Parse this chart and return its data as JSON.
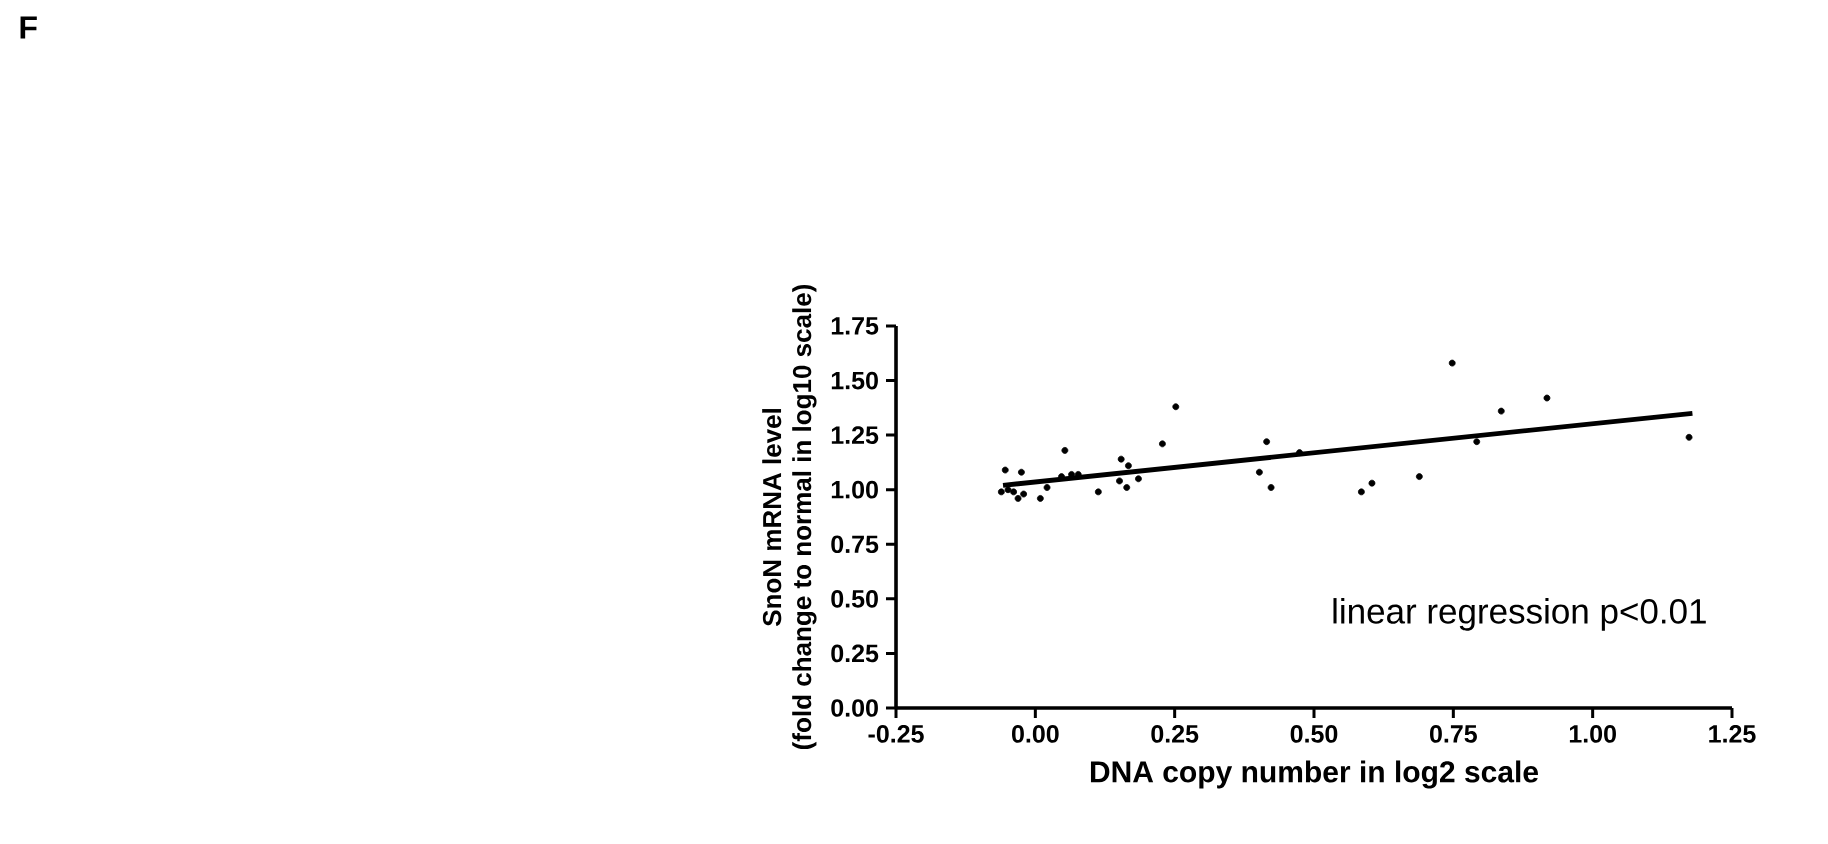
{
  "chart_data": {
    "type": "scatter",
    "xlabel": "DNA copy number in log2 scale",
    "ylabel": "SnoN mRNA level (fold change to normal in log10 scale)",
    "annotations": [
      "F",
      "linear regression p<0.01"
    ],
    "xlim": [
      -0.25,
      1.25
    ],
    "ylim": [
      0,
      1.75
    ],
    "xticks": [
      {
        "value": -0.25,
        "label": "-0.25"
      },
      {
        "value": 0,
        "label": "0.00"
      },
      {
        "value": 0.25,
        "label": "0.25"
      },
      {
        "value": 0.5,
        "label": "0.50"
      },
      {
        "value": 0.75,
        "label": "0.75"
      },
      {
        "value": 1,
        "label": "1.00"
      },
      {
        "value": 1.25,
        "label": "1.25"
      }
    ],
    "yticks": [
      {
        "value": 0,
        "label": "0.00"
      },
      {
        "value": 0.25,
        "label": "0.25"
      },
      {
        "value": 0.5,
        "label": "0.50"
      },
      {
        "value": 0.75,
        "label": "0.75"
      },
      {
        "value": 1,
        "label": "1.00"
      },
      {
        "value": 1.25,
        "label": "1.25"
      },
      {
        "value": 1.5,
        "label": "1.50"
      },
      {
        "value": 1.75,
        "label": "1.75"
      }
    ],
    "marker": "circle",
    "series": [
      {
        "color": "#000000",
        "x": [
          -0.054,
          -0.025,
          -0.061,
          -0.049,
          -0.039,
          -0.031,
          -0.021,
          0.009,
          0.021,
          0.053,
          0.047,
          0.065,
          0.077,
          0.113,
          0.154,
          0.167,
          0.151,
          0.164,
          0.185,
          0.228,
          0.252,
          0.402,
          0.415,
          0.423,
          0.474,
          0.585,
          0.604,
          0.689,
          0.748,
          0.792,
          0.836,
          0.918,
          1.173
        ],
        "values": [
          1.09,
          1.08,
          0.99,
          1.0,
          0.99,
          0.96,
          0.98,
          0.96,
          1.01,
          1.18,
          1.06,
          1.07,
          1.07,
          0.99,
          1.14,
          1.11,
          1.04,
          1.01,
          1.05,
          1.21,
          1.38,
          1.08,
          1.22,
          1.01,
          1.17,
          0.99,
          1.03,
          1.06,
          1.58,
          1.22,
          1.36,
          1.42,
          1.24
        ]
      },
      {
        "type": "line",
        "marker": "none",
        "color": "#000000",
        "x": [
          -0.058,
          1.179
        ],
        "values": [
          1.02,
          1.35
        ]
      }
    ]
  }
}
